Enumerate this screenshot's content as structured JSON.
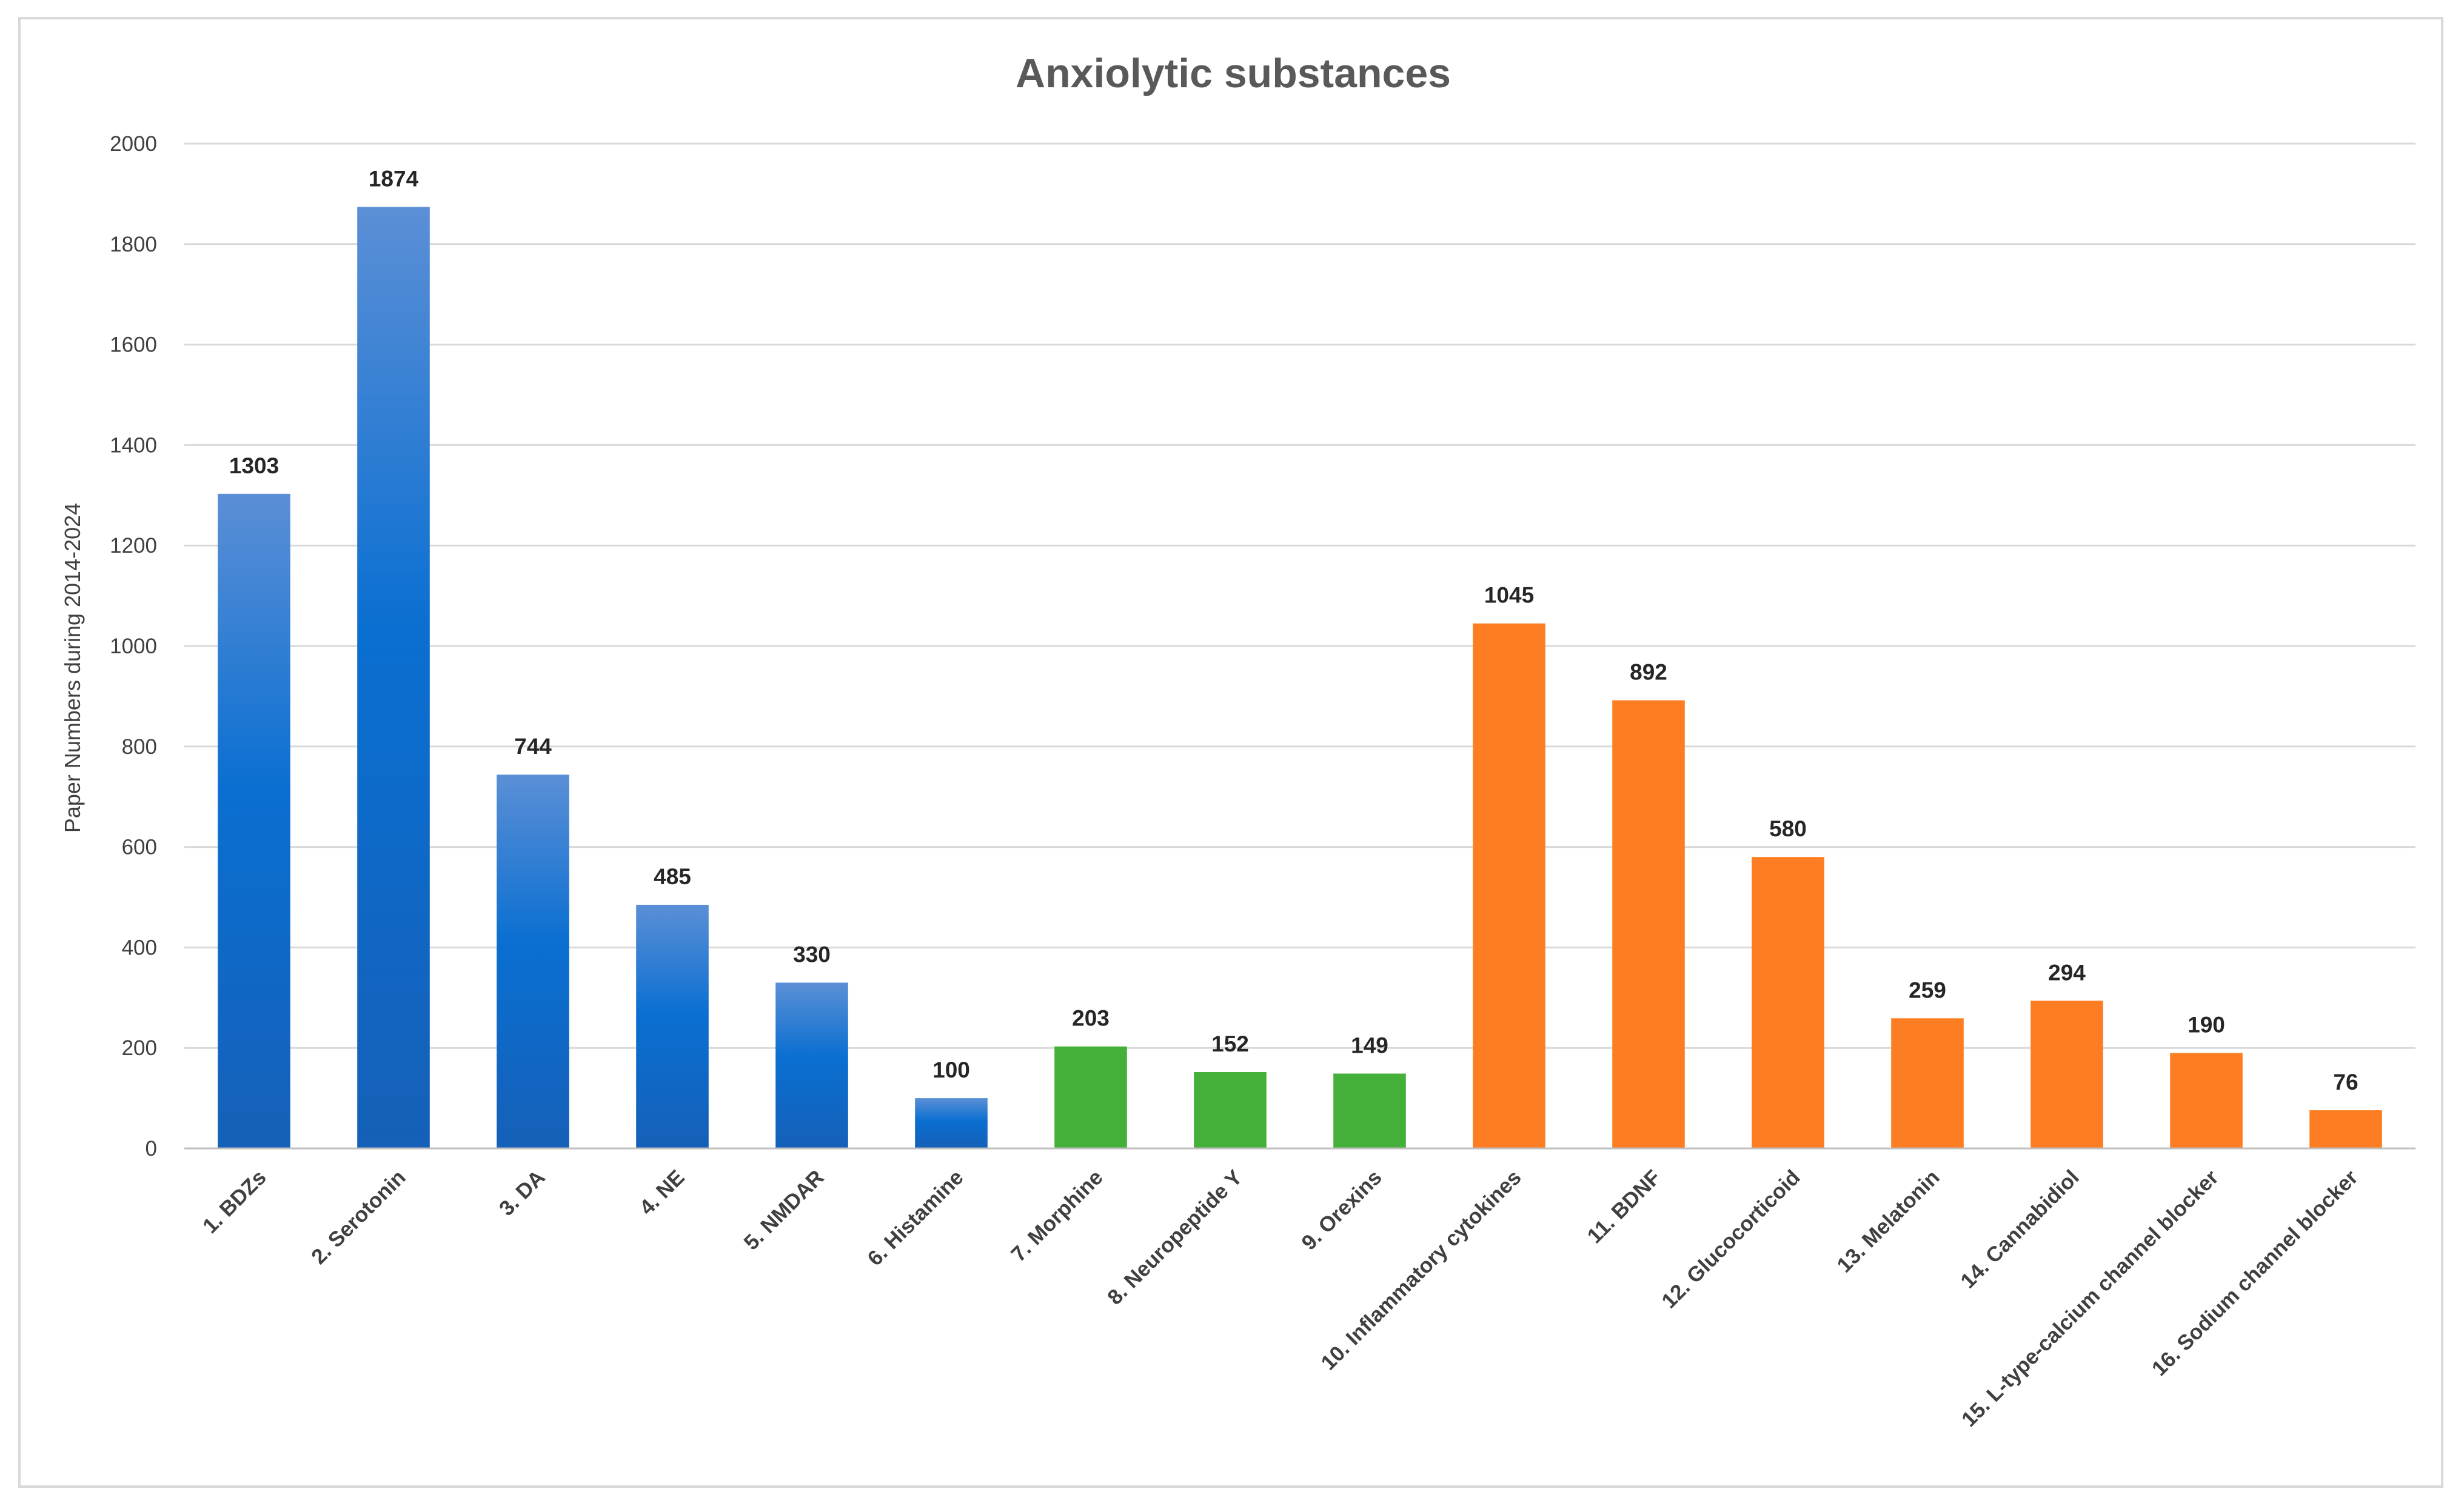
{
  "chart_data": {
    "type": "bar",
    "title": "Anxiolytic substances",
    "xlabel": "",
    "ylabel": "Paper Numbers during 2014-2024",
    "ylim": [
      0,
      2000
    ],
    "yticks": [
      0,
      200,
      400,
      600,
      800,
      1000,
      1200,
      1400,
      1600,
      1800,
      2000
    ],
    "grid": true,
    "categories": [
      "1. BDZs",
      "2. Serotonin",
      "3. DA",
      "4. NE",
      "5. NMDAR",
      "6. Histamine",
      "7. Morphine",
      "8. Neuropeptide Y",
      "9. Orexins",
      "10. Inflammatory cytokines",
      "11. BDNF",
      "12. Glucocorticoid",
      "13. Melatonin",
      "14. Cannabidiol",
      "15. L-type-calcium channel blocker",
      "16. Sodium channel blocker"
    ],
    "values": [
      1303,
      1874,
      744,
      485,
      330,
      100,
      203,
      152,
      149,
      1045,
      892,
      580,
      259,
      294,
      190,
      76
    ],
    "bar_groups": [
      "blue",
      "blue",
      "blue",
      "blue",
      "blue",
      "blue",
      "green",
      "green",
      "green",
      "orange",
      "orange",
      "orange",
      "orange",
      "orange",
      "orange",
      "orange"
    ],
    "colors": {
      "blue_top": "#5b8fd6",
      "blue_mid": "#0a6fd1",
      "blue_bottom": "#1560b8",
      "green": "#45b039",
      "orange": "#fd7e22",
      "grid": "#d9d9d9",
      "axis": "#bfbfbf"
    }
  }
}
